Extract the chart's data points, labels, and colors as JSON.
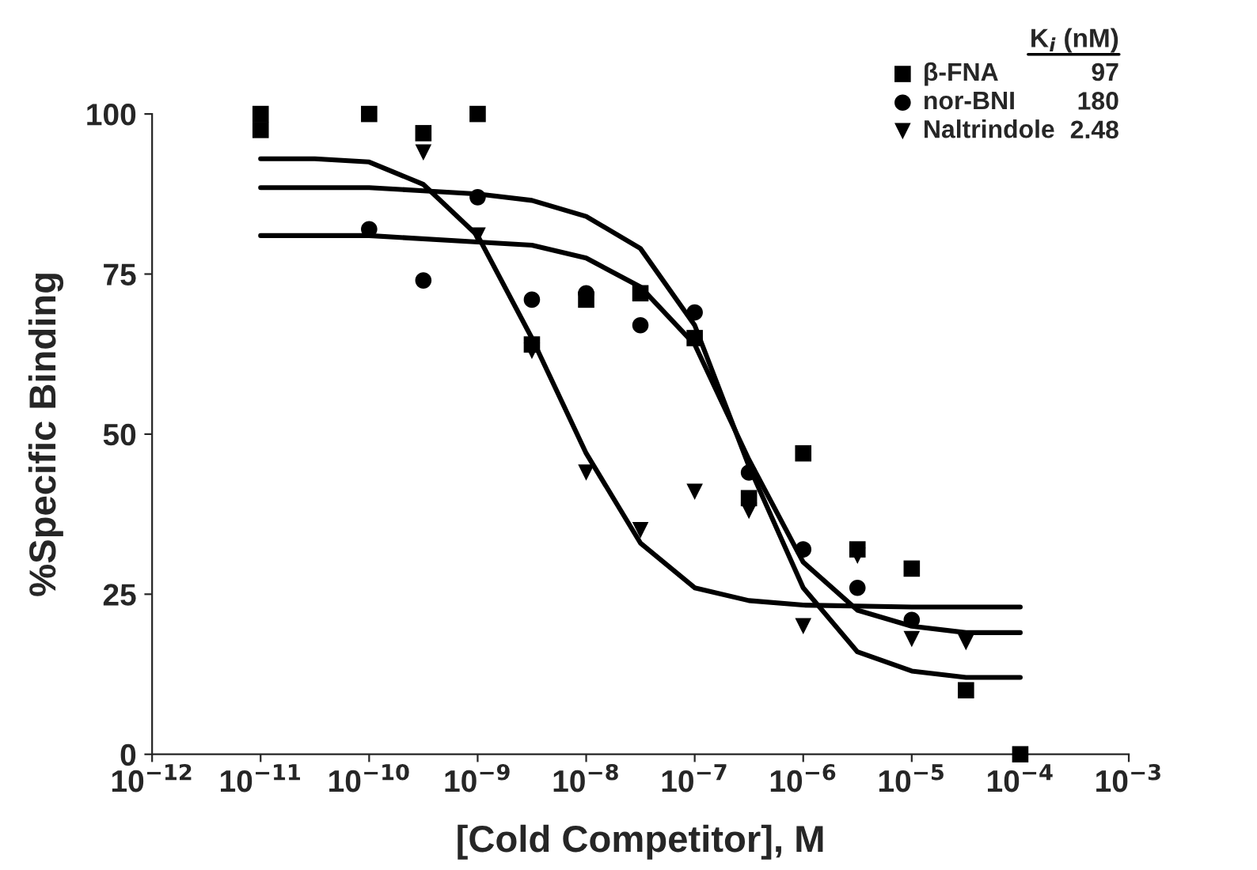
{
  "chart_data": {
    "type": "scatter",
    "xlabel": "[Cold Competitor], M",
    "ylabel": "%Specific Binding",
    "log": "x",
    "xlim": [
      1e-12,
      0.001
    ],
    "ylim": [
      0,
      100
    ],
    "xticks": [
      {
        "value": 1e-12,
        "label": "10$^{−12}$"
      },
      {
        "value": 1e-11,
        "label": "10$^{−11}$"
      },
      {
        "value": 1e-10,
        "label": "10$^{−10}$"
      },
      {
        "value": 1e-09,
        "label": "10$^{−9}$"
      },
      {
        "value": 1e-08,
        "label": "10$^{−8}$"
      },
      {
        "value": 1e-07,
        "label": "10$^{−7}$"
      },
      {
        "value": 1e-06,
        "label": "10$^{−6}$"
      },
      {
        "value": 1e-05,
        "label": "10$^{−5}$"
      },
      {
        "value": 0.0001,
        "label": "10$^{−4}$"
      },
      {
        "value": 0.001,
        "label": "10$^{−3}$"
      }
    ],
    "yticks": [
      0,
      25,
      50,
      75,
      100
    ],
    "grid": false,
    "legend": "top right",
    "annotations": [
      "K$_{i}$ (nM)",
      "97",
      "180",
      "2.48"
    ],
    "series": [
      {
        "name": "β-FNA",
        "marker": "square",
        "color": "#000000",
        "x": [
          1e-11,
          1e-11,
          1e-10,
          3.16e-10,
          1e-09,
          3.16e-09,
          1e-08,
          3.16e-08,
          1e-07,
          3.16e-07,
          1e-06,
          3.16e-06,
          1e-05,
          3.16e-05,
          0.0001
        ],
        "values": [
          100,
          97.5,
          100,
          97,
          100,
          64,
          71,
          72,
          65,
          40,
          47,
          32,
          29,
          10,
          0
        ]
      },
      {
        "name": "nor-BNI",
        "marker": "circle",
        "color": "#000000",
        "x": [
          1e-10,
          3.16e-10,
          1e-09,
          3.16e-09,
          1e-08,
          3.16e-08,
          1e-07,
          3.16e-07,
          1e-06,
          3.16e-06,
          1e-05
        ],
        "values": [
          82,
          74,
          87,
          71,
          72,
          67,
          69,
          44,
          32,
          26,
          21
        ]
      },
      {
        "name": "Naltrindole",
        "marker": "triangle",
        "color": "#000000",
        "x": [
          3.16e-10,
          1e-09,
          3.16e-09,
          1e-08,
          3.16e-08,
          1e-07,
          3.16e-07,
          1e-06,
          3.16e-06,
          1e-05,
          3.16e-05
        ],
        "values": [
          94,
          81,
          63,
          44,
          35,
          41,
          38,
          20,
          31,
          18,
          17.5
        ]
      },
      {
        "type": "line",
        "marker": "none",
        "color": "#000000",
        "x": [
          1e-11,
          1e-10,
          3.16e-10,
          1e-09,
          3.16e-09,
          1e-08,
          3.16e-08,
          1e-07,
          3.16e-07,
          1e-06,
          3.16e-06,
          1e-05,
          3.16e-05,
          0.0001
        ],
        "values": [
          88.5,
          88.5,
          88,
          87.5,
          86.5,
          84,
          79,
          67,
          45,
          26,
          16,
          13,
          12,
          12
        ]
      },
      {
        "type": "line",
        "marker": "none",
        "color": "#000000",
        "x": [
          1e-11,
          1e-10,
          1e-09,
          3.16e-09,
          1e-08,
          3.16e-08,
          1e-07,
          3.16e-07,
          1e-06,
          3.16e-06,
          1e-05,
          3.16e-05,
          0.0001
        ],
        "values": [
          81,
          81,
          80,
          79.5,
          77.5,
          73,
          64,
          46,
          30,
          22.5,
          20,
          19,
          19
        ]
      },
      {
        "type": "line",
        "marker": "none",
        "color": "#000000",
        "x": [
          1e-11,
          3.16e-11,
          1e-10,
          3.16e-10,
          1e-09,
          3.16e-09,
          1e-08,
          3.16e-08,
          1e-07,
          3.16e-07,
          1e-06,
          1e-05,
          0.0001
        ],
        "values": [
          93,
          93,
          92.5,
          89,
          81,
          65,
          47,
          33,
          26,
          24,
          23.3,
          23,
          23
        ]
      }
    ]
  }
}
